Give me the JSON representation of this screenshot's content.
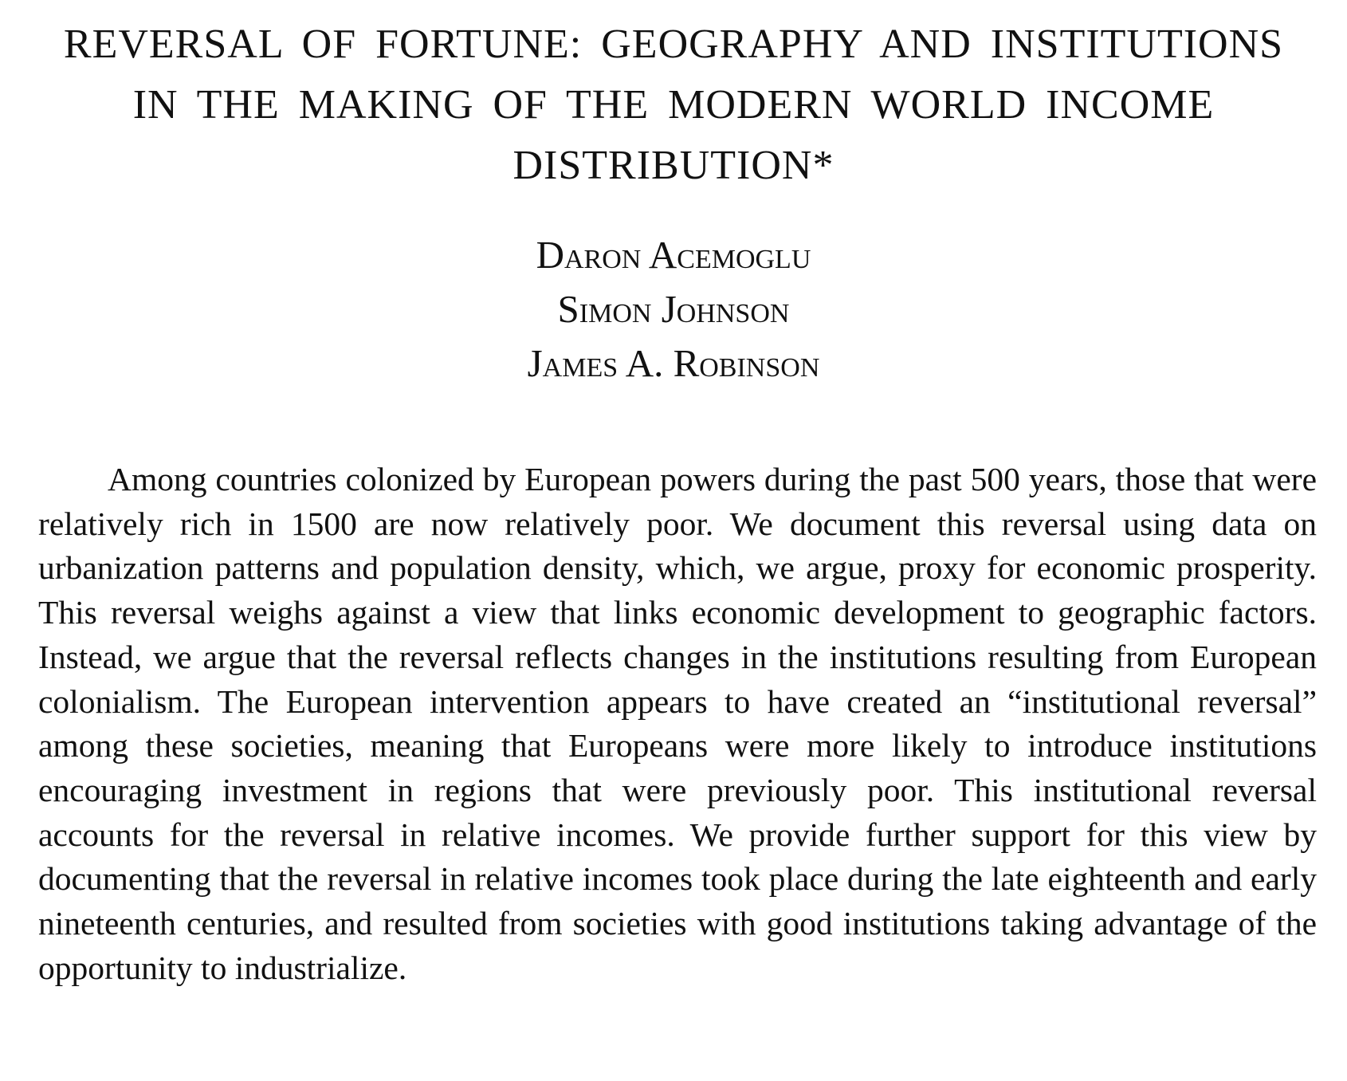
{
  "paper": {
    "title": "REVERSAL OF FORTUNE: GEOGRAPHY AND INSTITUTIONS IN THE MAKING OF THE MODERN WORLD INCOME DISTRIBUTION*",
    "authors": [
      "Daron Acemoglu",
      "Simon Johnson",
      "James A. Robinson"
    ],
    "abstract": "Among countries colonized by European powers during the past 500 years, those that were relatively rich in 1500 are now relatively poor. We document this reversal using data on urbanization patterns and population density, which, we argue, proxy for economic prosperity. This reversal weighs against a view that links economic development to geographic factors. Instead, we argue that the reversal reflects changes in the institutions resulting from European colonialism. The European intervention appears to have created an “institutional reversal” among these societies, meaning that Europeans were more likely to introduce institutions encouraging investment in regions that were previously poor. This institutional reversal accounts for the reversal in relative incomes. We provide further support for this view by documenting that the reversal in relative incomes took place during the late eighteenth and early nineteenth centuries, and resulted from societies with good institutions taking advantage of the opportunity to industrialize."
  }
}
